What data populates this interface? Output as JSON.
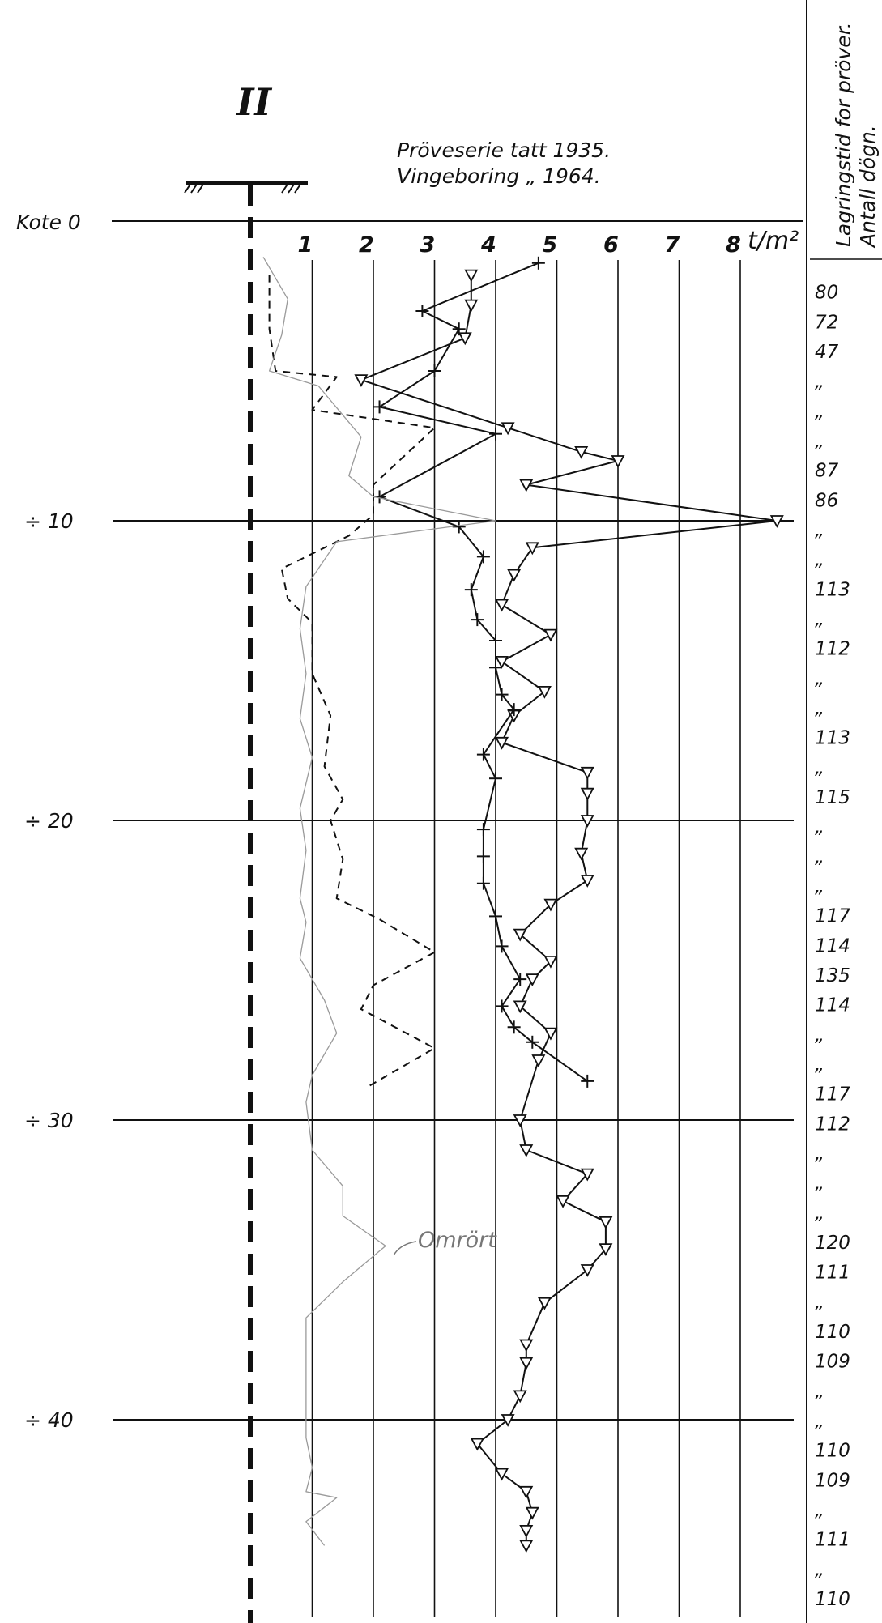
{
  "header": {
    "section_label": "II",
    "legend_line_1": "Pröveserie tatt 1935.",
    "legend_line_2": "Vingeboring „ 1964.",
    "kote_label": "Kote 0",
    "unit_label": "t/m²",
    "right_column_title_1": "Lagringstid for pröver.",
    "right_column_title_2": "Antall dögn."
  },
  "annotation": {
    "omrort_label": "Omrört"
  },
  "chart_data": {
    "type": "line",
    "orientation": "depth-profile",
    "xlim": [
      0,
      8.7
    ],
    "ylim": [
      0,
      44.3
    ],
    "x_ticks": [
      "1",
      "2",
      "3",
      "4",
      "5",
      "6",
      "7",
      "8"
    ],
    "y_ticks": [
      {
        "value": 0,
        "label": "Kote 0"
      },
      {
        "value": 10,
        "label": "÷ 10"
      },
      {
        "value": 20,
        "label": "÷ 20"
      },
      {
        "value": 30,
        "label": "÷ 30"
      },
      {
        "value": 40,
        "label": "÷ 40"
      }
    ],
    "grid": true,
    "series": [
      {
        "name": "Pröveserie tatt 1935.",
        "marker": "triangle",
        "style": "mixed solid/dashed",
        "points": [
          [
            3.6,
            1.8
          ],
          [
            3.6,
            2.8
          ],
          [
            3.5,
            3.9
          ],
          [
            1.8,
            5.3
          ],
          [
            4.2,
            6.9
          ],
          [
            5.4,
            7.7
          ],
          [
            6.0,
            8.0
          ],
          [
            4.5,
            8.8
          ],
          [
            8.6,
            10.0
          ],
          [
            4.6,
            10.9
          ],
          [
            4.3,
            11.8
          ],
          [
            4.1,
            12.8
          ],
          [
            4.9,
            13.8
          ],
          [
            4.1,
            14.7
          ],
          [
            4.8,
            15.7
          ],
          [
            4.3,
            16.5
          ],
          [
            4.1,
            17.4
          ],
          [
            5.5,
            18.4
          ],
          [
            5.5,
            19.1
          ],
          [
            5.5,
            20.0
          ],
          [
            5.4,
            21.1
          ],
          [
            5.5,
            22.0
          ],
          [
            4.9,
            22.8
          ],
          [
            4.4,
            23.8
          ],
          [
            4.9,
            24.7
          ],
          [
            4.6,
            25.3
          ],
          [
            4.4,
            26.2
          ],
          [
            4.9,
            27.1
          ],
          [
            4.7,
            28.0
          ],
          [
            4.4,
            30.0
          ],
          [
            4.5,
            31.0
          ],
          [
            5.5,
            31.8
          ],
          [
            5.1,
            32.7
          ],
          [
            5.8,
            33.4
          ],
          [
            5.8,
            34.3
          ],
          [
            5.5,
            35.0
          ],
          [
            4.8,
            36.1
          ],
          [
            4.5,
            37.5
          ],
          [
            4.5,
            38.1
          ],
          [
            4.4,
            39.2
          ],
          [
            4.2,
            40.0
          ],
          [
            3.7,
            40.8
          ],
          [
            4.1,
            41.8
          ],
          [
            4.5,
            42.4
          ],
          [
            4.6,
            43.1
          ],
          [
            4.5,
            43.7
          ],
          [
            4.5,
            44.2
          ]
        ]
      },
      {
        "name": "Vingeboring „ 1964.",
        "marker": "plus",
        "style": "mixed solid/dashed",
        "points": [
          [
            4.7,
            1.4
          ],
          [
            2.8,
            3.0
          ],
          [
            3.4,
            3.6
          ],
          [
            3.0,
            5.0
          ],
          [
            2.1,
            6.2
          ],
          [
            4.0,
            7.1
          ],
          [
            2.1,
            9.2
          ],
          [
            3.4,
            10.2
          ],
          [
            3.8,
            11.2
          ],
          [
            3.6,
            12.3
          ],
          [
            3.7,
            13.3
          ],
          [
            4.0,
            14.0
          ],
          [
            4.0,
            14.9
          ],
          [
            4.1,
            15.8
          ],
          [
            4.3,
            16.3
          ],
          [
            3.8,
            17.8
          ],
          [
            4.0,
            18.6
          ],
          [
            3.8,
            20.3
          ],
          [
            3.8,
            21.2
          ],
          [
            3.8,
            22.1
          ],
          [
            4.0,
            23.2
          ],
          [
            4.1,
            24.2
          ],
          [
            4.4,
            25.3
          ],
          [
            4.1,
            26.2
          ],
          [
            4.3,
            26.9
          ],
          [
            4.6,
            27.4
          ],
          [
            5.5,
            28.7
          ]
        ]
      },
      {
        "name": "",
        "marker": "none",
        "style": "dashed",
        "points": [
          [
            0.3,
            1.8
          ],
          [
            0.3,
            3.6
          ],
          [
            0.4,
            5.0
          ],
          [
            1.4,
            5.2
          ],
          [
            1.0,
            6.3
          ],
          [
            3.0,
            6.9
          ],
          [
            2.0,
            8.8
          ],
          [
            2.0,
            9.8
          ],
          [
            1.6,
            10.5
          ],
          [
            0.5,
            11.6
          ],
          [
            0.6,
            12.6
          ],
          [
            1.0,
            13.4
          ],
          [
            1.0,
            15.1
          ],
          [
            1.3,
            16.5
          ],
          [
            1.2,
            18.2
          ],
          [
            1.5,
            19.3
          ],
          [
            1.3,
            20.0
          ],
          [
            1.5,
            21.3
          ],
          [
            1.4,
            22.6
          ],
          [
            2.1,
            23.3
          ],
          [
            3.0,
            24.4
          ],
          [
            2.0,
            25.5
          ],
          [
            1.8,
            26.3
          ],
          [
            3.0,
            27.6
          ],
          [
            1.9,
            28.9
          ]
        ]
      },
      {
        "name": "Omrört",
        "marker": "none",
        "style": "thin grey",
        "points": [
          [
            0.2,
            1.2
          ],
          [
            0.6,
            2.6
          ],
          [
            0.5,
            3.8
          ],
          [
            0.3,
            5.0
          ],
          [
            1.1,
            5.5
          ],
          [
            1.8,
            7.2
          ],
          [
            1.6,
            8.5
          ],
          [
            2.0,
            9.2
          ],
          [
            4.0,
            10.0
          ],
          [
            1.4,
            10.7
          ],
          [
            0.9,
            12.2
          ],
          [
            0.8,
            13.6
          ],
          [
            0.9,
            15.1
          ],
          [
            0.8,
            16.6
          ],
          [
            1.0,
            17.9
          ],
          [
            0.8,
            19.6
          ],
          [
            0.9,
            21.0
          ],
          [
            0.8,
            22.6
          ],
          [
            0.9,
            23.4
          ],
          [
            0.8,
            24.6
          ],
          [
            1.2,
            26.0
          ],
          [
            1.4,
            27.1
          ],
          [
            1.0,
            28.5
          ],
          [
            0.9,
            29.4
          ],
          [
            1.0,
            31.0
          ],
          [
            1.5,
            32.2
          ],
          [
            1.5,
            33.2
          ],
          [
            2.2,
            34.2
          ],
          [
            1.5,
            35.4
          ],
          [
            0.9,
            36.6
          ],
          [
            0.9,
            38.6
          ],
          [
            0.9,
            40.6
          ],
          [
            1.0,
            41.6
          ],
          [
            0.9,
            42.4
          ],
          [
            1.4,
            42.6
          ],
          [
            0.9,
            43.4
          ],
          [
            1.2,
            44.2
          ]
        ]
      }
    ],
    "storage_days_column": [
      "80",
      "72",
      "47",
      "„",
      "„",
      "„",
      "87",
      "86",
      "„",
      "„",
      "113",
      "„",
      "112",
      "„",
      "„",
      "113",
      "„",
      "115",
      "„",
      "„",
      "„",
      "117",
      "114",
      "135",
      "114",
      "„",
      "„",
      "117",
      "112",
      "„",
      "„",
      "„",
      "120",
      "111",
      "„",
      "110",
      "109",
      "„",
      "„",
      "110",
      "109",
      "„",
      "111",
      "„",
      "110"
    ]
  }
}
